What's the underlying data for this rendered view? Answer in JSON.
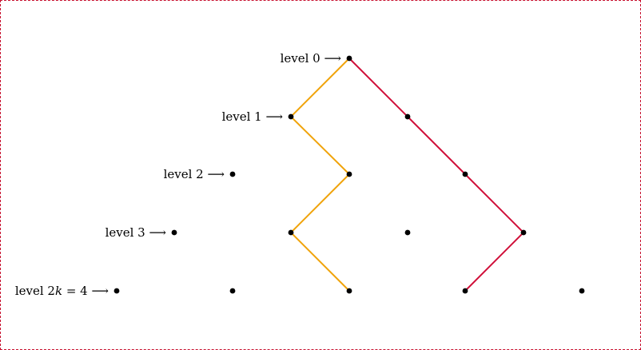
{
  "diagram": {
    "level_labels": [
      {
        "text": "level 0 ⟶"
      },
      {
        "text": "level 1 ⟶"
      },
      {
        "text": "level 2 ⟶"
      },
      {
        "text": "level 3 ⟶"
      },
      {
        "pre": "level 2",
        "var": "k",
        "post": " = 4 ⟶"
      }
    ],
    "colors": {
      "orange_path": "#f0a30a",
      "red_path": "#d0103a",
      "dot": "#000000",
      "frame": "#c8102e"
    }
  }
}
